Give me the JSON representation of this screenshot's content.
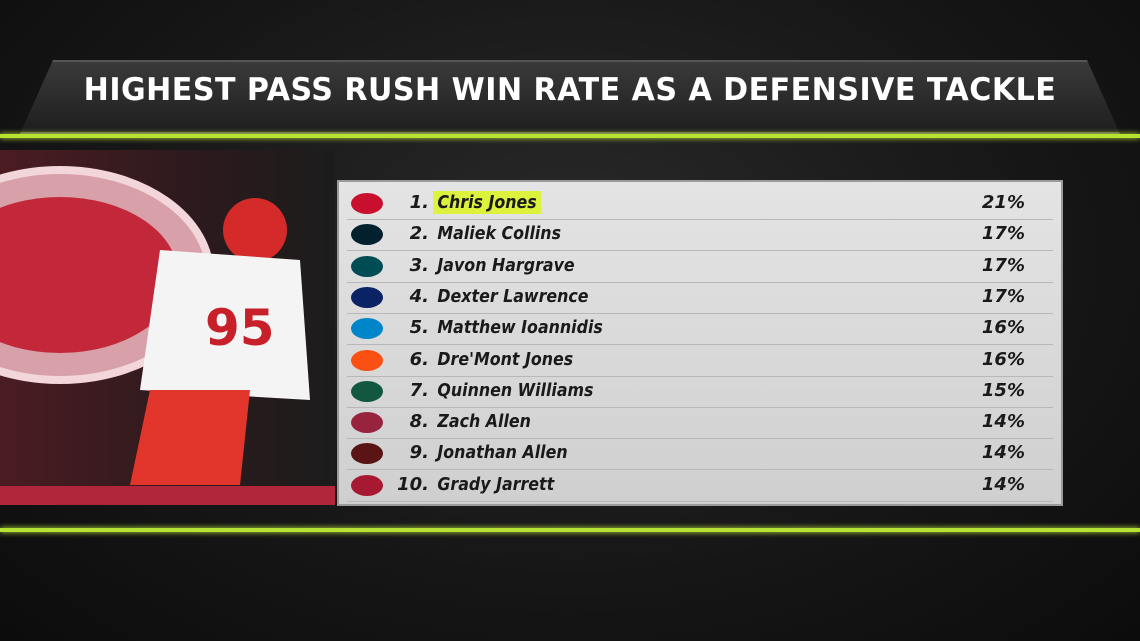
{
  "header": {
    "title": "HIGHEST PASS RUSH WIN RATE AS A DEFENSIVE TACKLE"
  },
  "table": {
    "rows": [
      {
        "rank": "1.",
        "name": "Chris Jones",
        "value": "21%"
      },
      {
        "rank": "2.",
        "name": "Maliek Collins",
        "value": "17%"
      },
      {
        "rank": "3.",
        "name": "Javon Hargrave",
        "value": "17%"
      },
      {
        "rank": "4.",
        "name": "Dexter Lawrence",
        "value": "17%"
      },
      {
        "rank": "5.",
        "name": "Matthew Ioannidis",
        "value": "16%"
      },
      {
        "rank": "6.",
        "name": "Dre'Mont Jones",
        "value": "16%"
      },
      {
        "rank": "7.",
        "name": "Quinnen Williams",
        "value": "15%"
      },
      {
        "rank": "8.",
        "name": "Zach Allen",
        "value": "14%"
      },
      {
        "rank": "9.",
        "name": "Jonathan Allen",
        "value": "14%"
      },
      {
        "rank": "10.",
        "name": "Grady Jarrett",
        "value": "14%"
      }
    ]
  }
}
